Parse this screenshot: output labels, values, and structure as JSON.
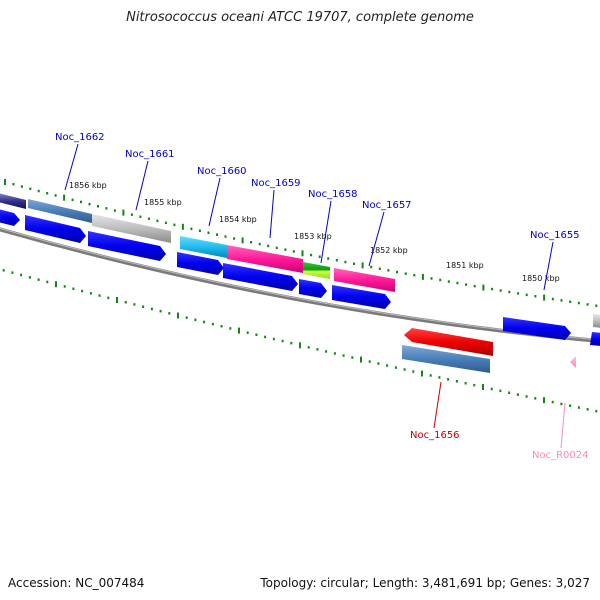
{
  "title": "Nitrosococcus oceani ATCC 19707, complete genome",
  "footer": {
    "accession": "Accession: NC_007484",
    "summary": "Topology: circular; Length: 3,481,691 bp; Genes: 3,027"
  },
  "ticks": [
    "1856 kbp",
    "1855 kbp",
    "1854 kbp",
    "1853 kbp",
    "1852 kbp",
    "1851 kbp",
    "1850 kbp"
  ],
  "genes": [
    {
      "name": "Noc_1662",
      "color": "#0000cc"
    },
    {
      "name": "Noc_1661",
      "color": "#0000cc"
    },
    {
      "name": "Noc_1660",
      "color": "#0000cc"
    },
    {
      "name": "Noc_1659",
      "color": "#0000cc"
    },
    {
      "name": "Noc_1658",
      "color": "#0000cc"
    },
    {
      "name": "Noc_1657",
      "color": "#0000cc"
    },
    {
      "name": "Noc_1655",
      "color": "#0000cc"
    },
    {
      "name": "Noc_1656",
      "color": "#cc0000"
    },
    {
      "name": "Noc_R0024",
      "color": "#ff88bb"
    }
  ]
}
